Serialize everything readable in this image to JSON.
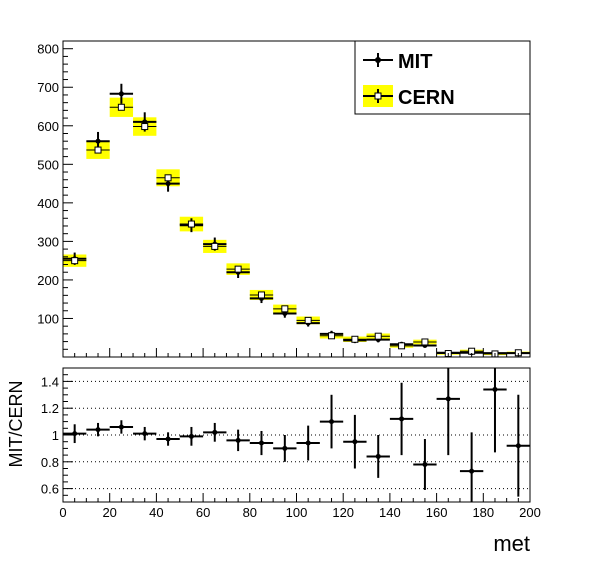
{
  "chart_data": [
    {
      "type": "scatter",
      "panel": "top",
      "xlabel": "",
      "ylabel": "",
      "xlim": [
        0,
        200
      ],
      "ylim": [
        0,
        820
      ],
      "bin_width": 10,
      "x": [
        5,
        15,
        25,
        35,
        45,
        55,
        65,
        75,
        85,
        95,
        105,
        115,
        125,
        135,
        145,
        155,
        165,
        175,
        185,
        195
      ],
      "yticks": [
        100,
        200,
        300,
        400,
        500,
        600,
        700,
        800
      ],
      "series": [
        {
          "name": "MIT",
          "style": "markers with error bars",
          "color": "#000000",
          "values": [
            255,
            560,
            683,
            610,
            450,
            342,
            293,
            220,
            152,
            113,
            88,
            60,
            43,
            45,
            33,
            30,
            11,
            11,
            10,
            10
          ],
          "errors": [
            16,
            24,
            26,
            25,
            21,
            18,
            17,
            15,
            12,
            11,
            9,
            8,
            7,
            7,
            6,
            5,
            3,
            3,
            3,
            3
          ]
        },
        {
          "name": "CERN",
          "style": "open squares with yellow error boxes",
          "color": "#ffff00",
          "values": [
            250,
            537,
            648,
            598,
            465,
            345,
            287,
            228,
            161,
            125,
            95,
            55,
            46,
            54,
            29,
            39,
            9,
            15,
            8,
            11
          ],
          "errors": [
            16,
            23,
            25,
            24,
            22,
            19,
            17,
            15,
            13,
            11,
            10,
            7,
            7,
            7,
            5,
            6,
            3,
            4,
            3,
            3
          ]
        }
      ],
      "legend": {
        "position": "top-right",
        "entries": [
          "MIT",
          "CERN"
        ]
      }
    },
    {
      "type": "scatter",
      "panel": "bottom",
      "xlabel": "met",
      "ylabel": "MIT/CERN",
      "xlim": [
        0,
        200
      ],
      "ylim": [
        0.5,
        1.5
      ],
      "xticks": [
        0,
        20,
        40,
        60,
        80,
        100,
        120,
        140,
        160,
        180,
        200
      ],
      "yticks": [
        0.6,
        0.8,
        1,
        1.2,
        1.4
      ],
      "x": [
        5,
        15,
        25,
        35,
        45,
        55,
        65,
        75,
        85,
        95,
        105,
        115,
        125,
        135,
        145,
        155,
        165,
        175,
        185,
        195
      ],
      "series": [
        {
          "name": "MIT/CERN",
          "color": "#000000",
          "values": [
            1.01,
            1.04,
            1.06,
            1.01,
            0.97,
            0.99,
            1.02,
            0.96,
            0.94,
            0.9,
            0.94,
            1.1,
            0.95,
            0.84,
            1.12,
            0.78,
            1.27,
            0.73,
            1.34,
            0.92
          ],
          "errors": [
            0.07,
            0.05,
            0.05,
            0.05,
            0.05,
            0.07,
            0.07,
            0.08,
            0.09,
            0.1,
            0.13,
            0.2,
            0.2,
            0.16,
            0.27,
            0.19,
            0.42,
            0.29,
            0.47,
            0.38
          ]
        }
      ],
      "reference_lines": [
        0.6,
        0.8,
        1.0,
        1.2,
        1.4
      ],
      "grid": "horizontal dotted"
    }
  ]
}
